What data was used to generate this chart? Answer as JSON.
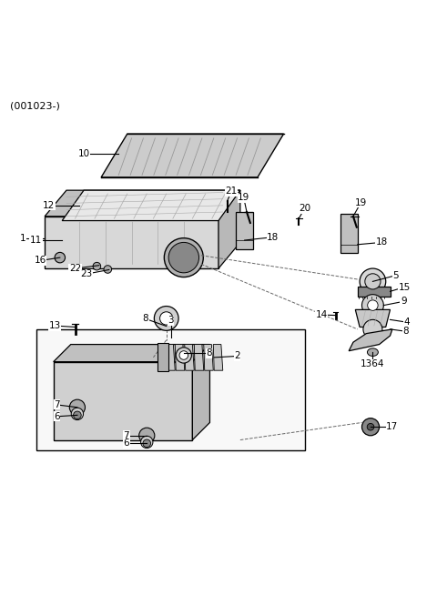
{
  "title": "(001023-)",
  "background_color": "#ffffff",
  "line_color": "#000000",
  "part_color": "#d0d0d0",
  "part_dark": "#888888",
  "part_light": "#eeeeee",
  "label_color": "#000000",
  "dashed_color": "#555555",
  "figsize": [
    4.8,
    6.76
  ],
  "dpi": 100
}
